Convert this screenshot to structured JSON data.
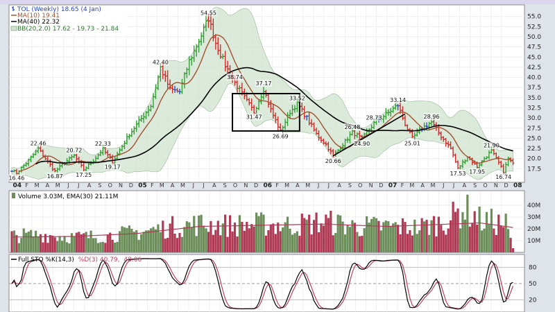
{
  "colors": {
    "up": "#2a9a2a",
    "down": "#d12020",
    "neutral": "#2244cc",
    "ma10": "#a0522d",
    "ma40": "#000000",
    "band_fill": "#cfe3cf",
    "band_line": "#9ab89a",
    "vol_up": "#6b8e5a",
    "vol_down": "#b03a55",
    "vol_ema": "#b03a55",
    "sto_k": "#000000",
    "sto_d": "#c04060",
    "panel_bg": "#ffffff",
    "header_bg": "#dcd5ee"
  },
  "chart_data": [
    {
      "type": "candlestick-ohlc",
      "title": "TOL (Weekly) 18.65 (4 Jan)",
      "legend": [
        {
          "label": "TOL (Weekly) 18.65 (4 Jan)",
          "color": "#2244cc",
          "icon": "ohlc-bar-icon"
        },
        {
          "label": "MA(10) 19.41",
          "color": "#a0522d",
          "icon": "line-icon"
        },
        {
          "label": "MA(40) 22.32",
          "color": "#000000",
          "icon": "line-icon"
        },
        {
          "label": "BB(20,2.0) 17.62 - 19.73 - 21.84",
          "color": "#2a7a2a",
          "icon": "band-icon"
        }
      ],
      "legend_position": "top-left",
      "y_axis": {
        "side": "right",
        "ylim": [
          15.0,
          57.0
        ],
        "ticks": [
          "17.5",
          "20.0",
          "22.5",
          "25.0",
          "27.5",
          "30.0",
          "32.5",
          "35.0",
          "37.5",
          "40.0",
          "42.5",
          "45.0",
          "47.5",
          "50.0",
          "52.5",
          "55.0"
        ]
      },
      "x_axis": {
        "xlim": [
          "2004-01-02",
          "2008-01-07"
        ],
        "year_ticks": [
          {
            "date": "2004-01-01",
            "label": "04"
          },
          {
            "date": "2005-01-01",
            "label": "05"
          },
          {
            "date": "2006-01-01",
            "label": "06"
          },
          {
            "date": "2007-01-01",
            "label": "07"
          },
          {
            "date": "2008-01-01",
            "label": "08"
          }
        ],
        "month_labels": [
          "J",
          "F",
          "M",
          "A",
          "M",
          "J",
          "J",
          "A",
          "S",
          "O",
          "N",
          "D"
        ]
      },
      "price_anchors": [
        [
          "2004-01-02",
          17.2
        ],
        [
          "2004-01-16",
          16.46
        ],
        [
          "2004-02-20",
          19.5
        ],
        [
          "2004-03-19",
          22.46
        ],
        [
          "2004-04-16",
          19.2
        ],
        [
          "2004-05-07",
          16.87
        ],
        [
          "2004-06-04",
          19.0
        ],
        [
          "2004-07-02",
          20.72
        ],
        [
          "2004-07-30",
          17.25
        ],
        [
          "2004-08-27",
          19.5
        ],
        [
          "2004-09-24",
          22.33
        ],
        [
          "2004-10-22",
          19.17
        ],
        [
          "2004-12-10",
          26.0
        ],
        [
          "2005-02-11",
          33.0
        ],
        [
          "2005-03-11",
          42.4
        ],
        [
          "2005-04-08",
          37.0
        ],
        [
          "2005-05-06",
          36.5
        ],
        [
          "2005-06-03",
          44.0
        ],
        [
          "2005-07-01",
          49.0
        ],
        [
          "2005-07-29",
          54.55
        ],
        [
          "2005-08-19",
          48.5
        ],
        [
          "2005-09-16",
          43.0
        ],
        [
          "2005-10-14",
          38.74
        ],
        [
          "2005-11-11",
          35.0
        ],
        [
          "2005-12-09",
          31.47
        ],
        [
          "2006-01-06",
          37.17
        ],
        [
          "2006-01-27",
          32.0
        ],
        [
          "2006-02-24",
          26.69
        ],
        [
          "2006-03-24",
          31.5
        ],
        [
          "2006-04-14",
          33.52
        ],
        [
          "2006-05-12",
          30.0
        ],
        [
          "2006-06-09",
          26.0
        ],
        [
          "2006-07-07",
          23.5
        ],
        [
          "2006-07-28",
          20.66
        ],
        [
          "2006-08-25",
          23.5
        ],
        [
          "2006-09-22",
          26.48
        ],
        [
          "2006-10-20",
          24.9
        ],
        [
          "2006-11-24",
          28.73
        ],
        [
          "2006-12-22",
          30.5
        ],
        [
          "2007-02-02",
          33.14
        ],
        [
          "2007-02-23",
          28.5
        ],
        [
          "2007-03-16",
          25.01
        ],
        [
          "2007-04-13",
          27.5
        ],
        [
          "2007-05-11",
          28.96
        ],
        [
          "2007-06-08",
          25.5
        ],
        [
          "2007-07-06",
          22.5
        ],
        [
          "2007-07-27",
          17.53
        ],
        [
          "2007-08-24",
          20.5
        ],
        [
          "2007-09-21",
          17.95
        ],
        [
          "2007-10-12",
          20.0
        ],
        [
          "2007-11-02",
          21.9
        ],
        [
          "2007-11-23",
          19.0
        ],
        [
          "2007-12-07",
          16.74
        ],
        [
          "2007-12-21",
          20.0
        ],
        [
          "2008-01-04",
          18.65
        ]
      ],
      "price_labels": [
        {
          "date": "2004-01-16",
          "value": 16.46,
          "text": "16.46",
          "pos": "below"
        },
        {
          "date": "2004-03-19",
          "value": 22.46,
          "text": "22.46",
          "pos": "above"
        },
        {
          "date": "2004-05-07",
          "value": 16.87,
          "text": "16.87",
          "pos": "below"
        },
        {
          "date": "2004-07-02",
          "value": 20.72,
          "text": "20.72",
          "pos": "above"
        },
        {
          "date": "2004-07-30",
          "value": 17.25,
          "text": "17.25",
          "pos": "below"
        },
        {
          "date": "2004-09-24",
          "value": 22.33,
          "text": "22.33",
          "pos": "above"
        },
        {
          "date": "2004-10-22",
          "value": 19.17,
          "text": "19.17",
          "pos": "below"
        },
        {
          "date": "2005-03-11",
          "value": 42.4,
          "text": "42.40",
          "pos": "above"
        },
        {
          "date": "2005-07-29",
          "value": 54.55,
          "text": "54.55",
          "pos": "above"
        },
        {
          "date": "2005-10-14",
          "value": 38.74,
          "text": "38.74",
          "pos": "above"
        },
        {
          "date": "2005-12-09",
          "value": 31.47,
          "text": "31.47",
          "pos": "below"
        },
        {
          "date": "2006-01-06",
          "value": 37.17,
          "text": "37.17",
          "pos": "above"
        },
        {
          "date": "2006-02-24",
          "value": 26.69,
          "text": "26.69",
          "pos": "below"
        },
        {
          "date": "2006-04-14",
          "value": 33.52,
          "text": "33.52",
          "pos": "above"
        },
        {
          "date": "2006-07-28",
          "value": 20.66,
          "text": "20.66",
          "pos": "below"
        },
        {
          "date": "2006-09-22",
          "value": 26.48,
          "text": "26.48",
          "pos": "above"
        },
        {
          "date": "2006-10-20",
          "value": 24.9,
          "text": "24.90",
          "pos": "below"
        },
        {
          "date": "2006-11-24",
          "value": 28.73,
          "text": "28.73",
          "pos": "above"
        },
        {
          "date": "2007-02-02",
          "value": 33.14,
          "text": "33.14",
          "pos": "above"
        },
        {
          "date": "2007-03-16",
          "value": 25.01,
          "text": "25.01",
          "pos": "below"
        },
        {
          "date": "2007-05-11",
          "value": 28.96,
          "text": "28.96",
          "pos": "above"
        },
        {
          "date": "2007-07-27",
          "value": 17.53,
          "text": "17.53",
          "pos": "below"
        },
        {
          "date": "2007-09-21",
          "value": 17.95,
          "text": "17.95",
          "pos": "below"
        },
        {
          "date": "2007-11-02",
          "value": 21.9,
          "text": "21.90",
          "pos": "above"
        },
        {
          "date": "2007-12-07",
          "value": 16.74,
          "text": "16.74",
          "pos": "below"
        }
      ],
      "annotations": {
        "box": {
          "start": "2005-10-07",
          "end": "2006-04-21",
          "low": 26.8,
          "high": 36.0
        },
        "trendline": {
          "start": [
            "2006-07-28",
            20.66
          ],
          "end": [
            "2007-02-23",
            31.0
          ]
        }
      }
    },
    {
      "type": "bar",
      "title": "Volume 3.03M, EMA(30) 21.11M",
      "legend": [
        {
          "label": "Volume 3.03M, EMA(30) 21.11M",
          "color": "#6b8e5a",
          "icon": "bar-icon"
        }
      ],
      "y_axis": {
        "side": "right",
        "ylim": [
          0,
          50
        ],
        "unit": "M",
        "ticks": [
          "10M",
          "20M",
          "30M",
          "40M"
        ]
      },
      "volume_anchors": [
        [
          "2004-01-02",
          14
        ],
        [
          "2004-04-01",
          15
        ],
        [
          "2004-07-01",
          13
        ],
        [
          "2004-10-01",
          14
        ],
        [
          "2005-01-01",
          17
        ],
        [
          "2005-04-01",
          21
        ],
        [
          "2005-07-01",
          24
        ],
        [
          "2005-10-01",
          23
        ],
        [
          "2006-01-01",
          24
        ],
        [
          "2006-04-01",
          23
        ],
        [
          "2006-07-01",
          26
        ],
        [
          "2006-10-01",
          22
        ],
        [
          "2007-01-01",
          22
        ],
        [
          "2007-04-01",
          21
        ],
        [
          "2007-07-01",
          27
        ],
        [
          "2007-08-15",
          38
        ],
        [
          "2007-10-01",
          27
        ],
        [
          "2007-12-15",
          24
        ],
        [
          "2008-01-04",
          3.03
        ]
      ],
      "ema_anchors": [
        [
          "2004-01-02",
          13
        ],
        [
          "2004-07-01",
          13.5
        ],
        [
          "2005-01-01",
          16
        ],
        [
          "2005-07-01",
          22
        ],
        [
          "2006-01-01",
          23
        ],
        [
          "2006-07-01",
          24
        ],
        [
          "2007-01-01",
          22
        ],
        [
          "2007-07-01",
          24
        ],
        [
          "2007-10-01",
          25
        ],
        [
          "2008-01-04",
          21.11
        ]
      ]
    },
    {
      "type": "line",
      "title": "Full STO %K(14,3) %D(3) 40.79, 48.06",
      "legend": [
        {
          "label": "Full STO %K(14,3)",
          "color": "#000000",
          "icon": "line-icon"
        },
        {
          "label": "%D(3) 40.79,",
          "color": "#c04060",
          "icon": "line-icon"
        },
        {
          "label": "48.06",
          "color": "#c04060",
          "icon": "none"
        }
      ],
      "y_axis": {
        "side": "right",
        "ylim": [
          0,
          100
        ],
        "ticks": [
          "20",
          "50",
          "80"
        ]
      },
      "reference_lines": [
        20,
        50,
        80
      ]
    }
  ]
}
